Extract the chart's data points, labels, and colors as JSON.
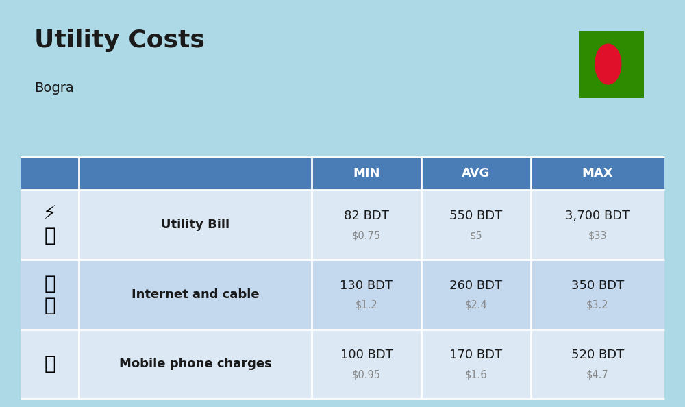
{
  "title": "Utility Costs",
  "subtitle": "Bogra",
  "bg_color": "#add8e6",
  "header_bg_color": "#4a7db5",
  "header_text_color": "#FFFFFF",
  "row_bg_color_1": "#dce9f5",
  "row_bg_color_2": "#c5d9ee",
  "col_headers": [
    "MIN",
    "AVG",
    "MAX"
  ],
  "rows": [
    {
      "label": "Utility Bill",
      "min_bdt": "82 BDT",
      "min_usd": "$0.75",
      "avg_bdt": "550 BDT",
      "avg_usd": "$5",
      "max_bdt": "3,700 BDT",
      "max_usd": "$33"
    },
    {
      "label": "Internet and cable",
      "min_bdt": "130 BDT",
      "min_usd": "$1.2",
      "avg_bdt": "260 BDT",
      "avg_usd": "$2.4",
      "max_bdt": "350 BDT",
      "max_usd": "$3.2"
    },
    {
      "label": "Mobile phone charges",
      "min_bdt": "100 BDT",
      "min_usd": "$0.95",
      "avg_bdt": "170 BDT",
      "avg_usd": "$1.6",
      "max_bdt": "520 BDT",
      "max_usd": "$4.7"
    }
  ],
  "flag_green": "#2e8b00",
  "flag_red": "#e0102a",
  "label_fontsize": 13,
  "value_fontsize": 13,
  "subvalue_fontsize": 10.5,
  "header_fontsize": 13
}
